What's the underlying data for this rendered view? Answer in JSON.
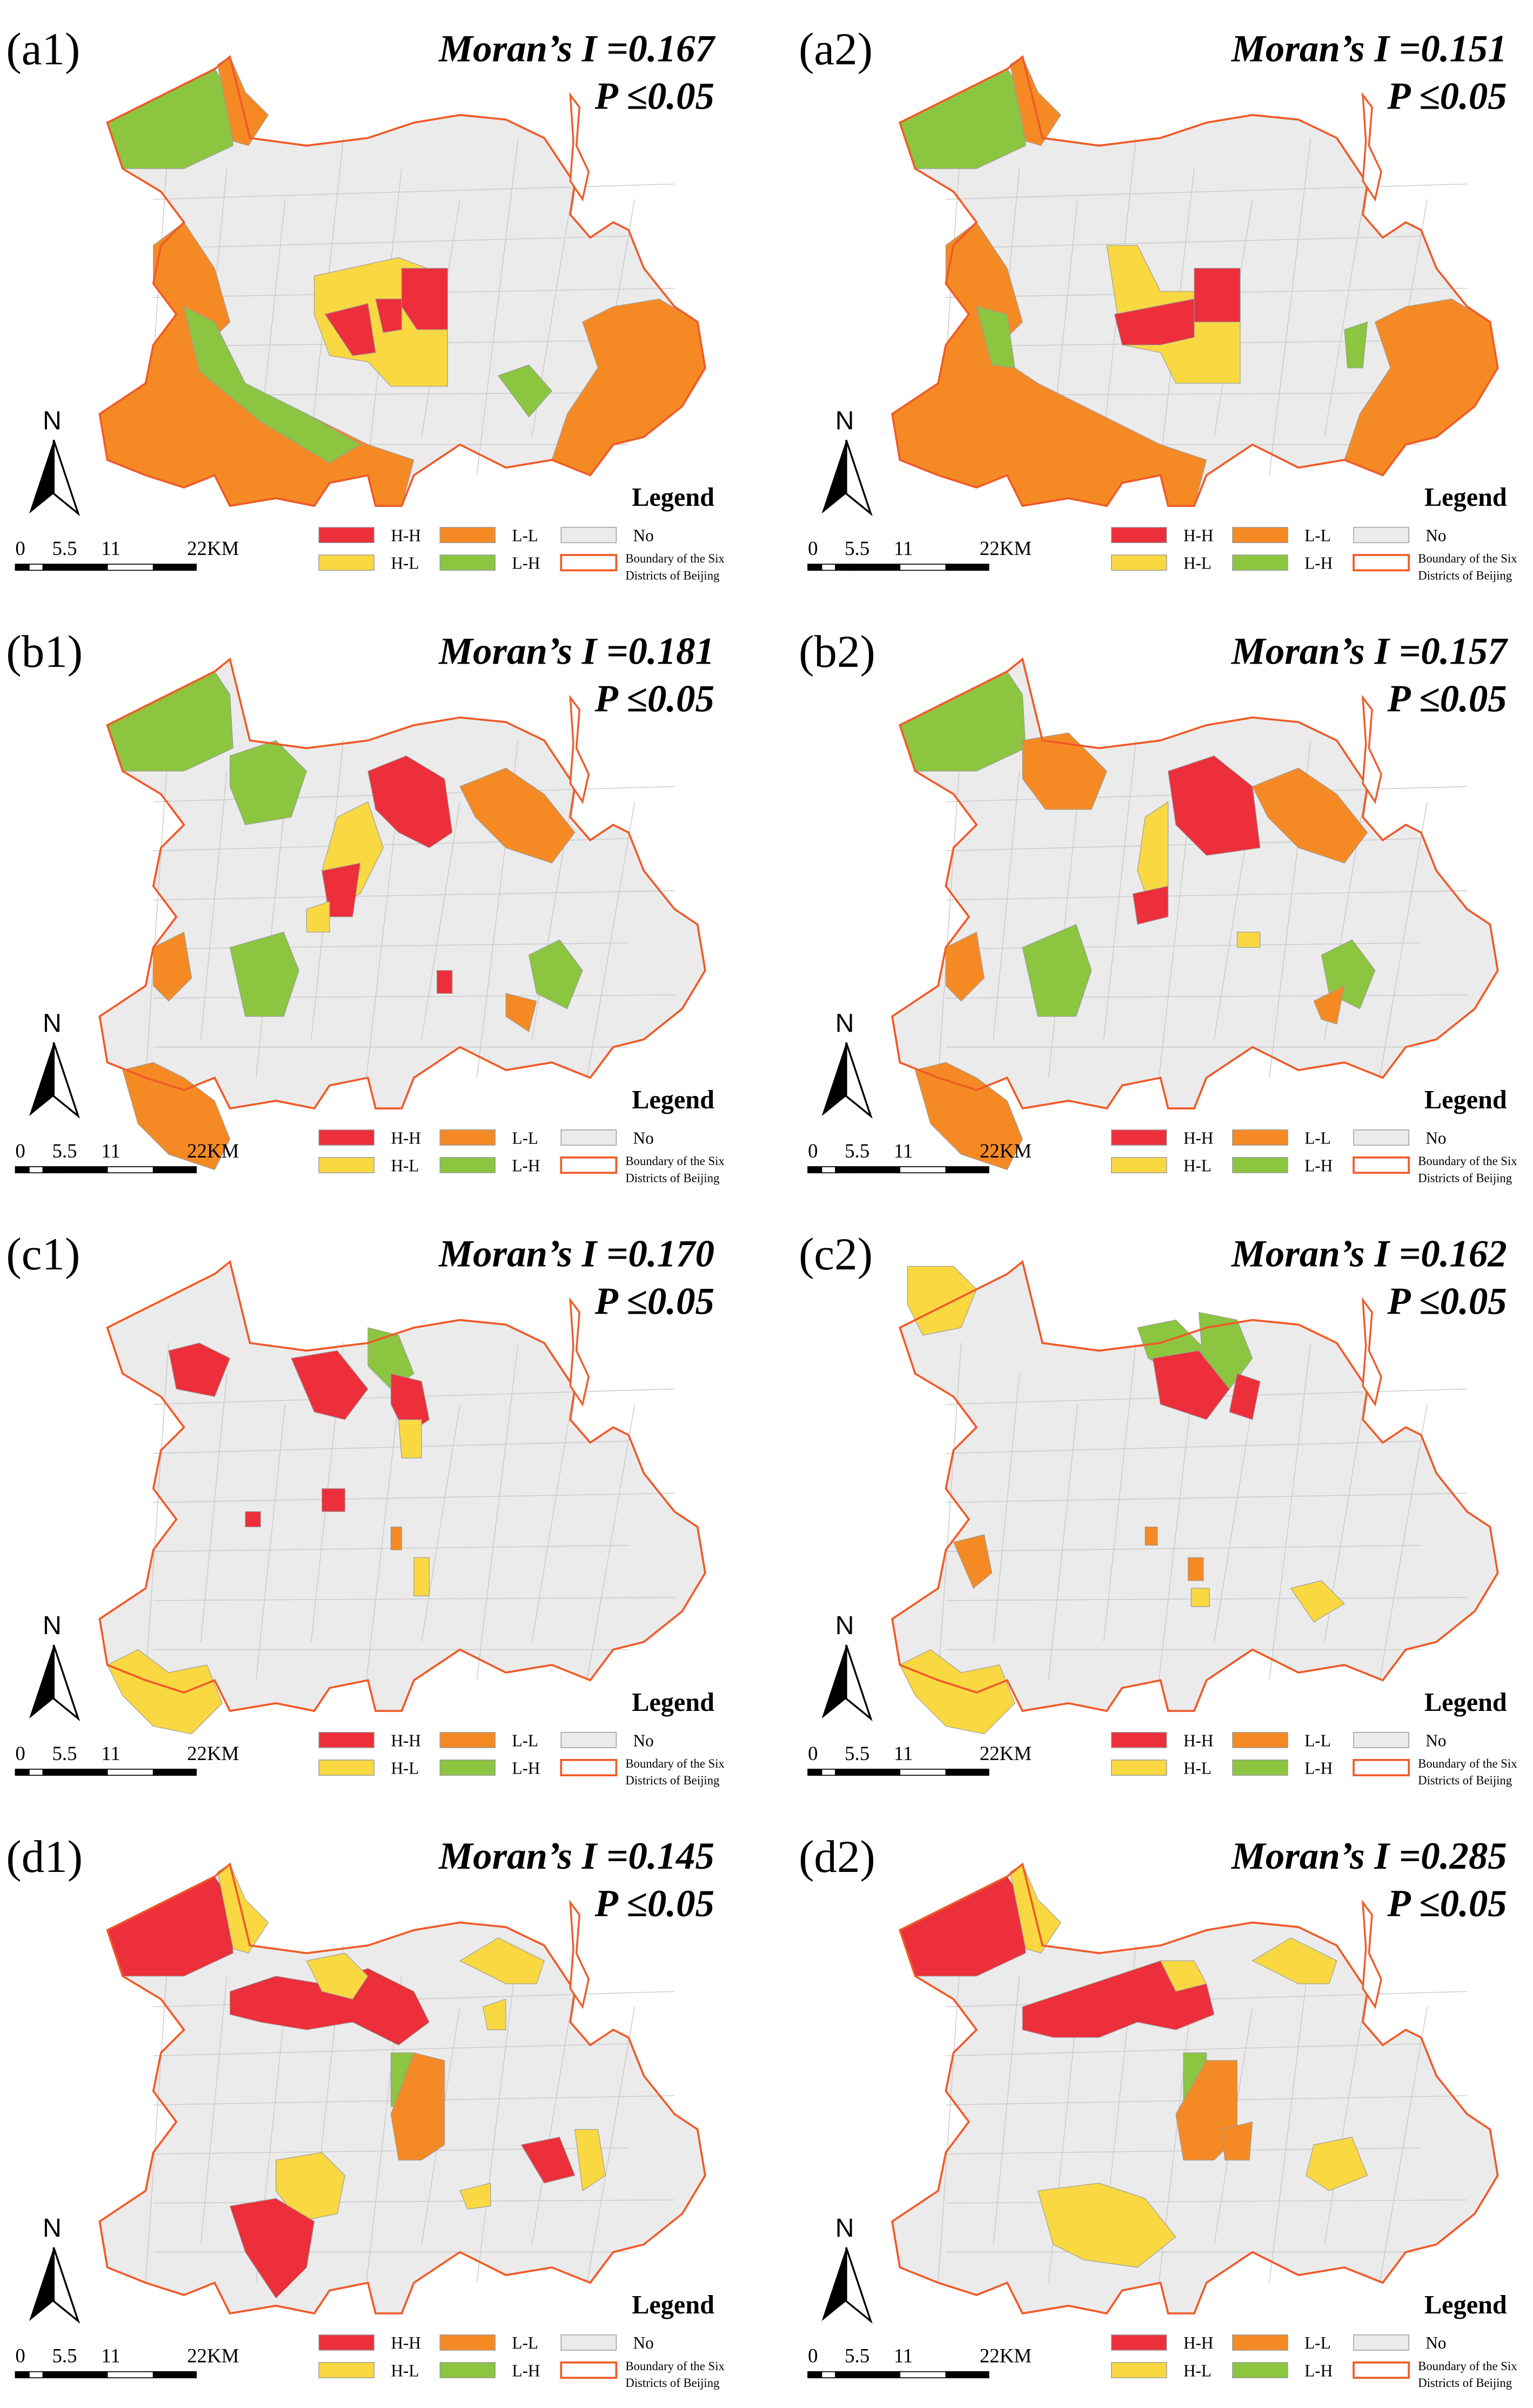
{
  "panels": [
    {
      "label": "(a1)",
      "moran": "Moran’s I =0.167",
      "p": "P ≤0.05"
    },
    {
      "label": "(a2)",
      "moran": "Moran’s I =0.151",
      "p": "P ≤0.05"
    },
    {
      "label": "(b1)",
      "moran": "Moran’s I =0.181",
      "p": "P ≤0.05"
    },
    {
      "label": "(b2)",
      "moran": "Moran’s I =0.157",
      "p": "P ≤0.05"
    },
    {
      "label": "(c1)",
      "moran": "Moran’s I =0.170",
      "p": "P ≤0.05"
    },
    {
      "label": "(c2)",
      "moran": "Moran’s I =0.162",
      "p": "P ≤0.05"
    },
    {
      "label": "(d1)",
      "moran": "Moran’s I =0.145",
      "p": "P ≤0.05"
    },
    {
      "label": "(d2)",
      "moran": "Moran’s I =0.285",
      "p": "P ≤0.05"
    }
  ],
  "legend": {
    "title": "Legend",
    "hh": "H-H",
    "ll": "L-L",
    "no": "No",
    "hl": "H-L",
    "lh": "L-H",
    "boundary": [
      "Boundary of the Six",
      "Districts of Beijing"
    ]
  },
  "scale": [
    "0",
    "5.5",
    "11",
    "22KM"
  ],
  "north": "N"
}
